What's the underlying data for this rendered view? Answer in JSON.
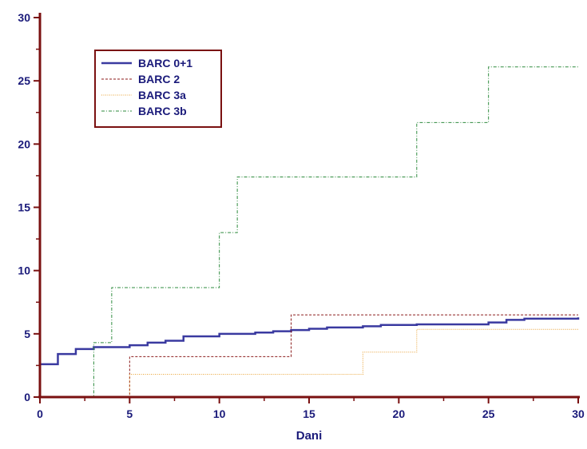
{
  "chart_data": {
    "type": "line",
    "step": true,
    "xlabel": "Dani",
    "ylabel": "",
    "xlim": [
      0,
      30
    ],
    "ylim": [
      0,
      30
    ],
    "xticks": [
      0,
      5,
      10,
      15,
      20,
      25,
      30
    ],
    "yticks": [
      0,
      5,
      10,
      15,
      20,
      25,
      30
    ],
    "legend_position": "top-left",
    "axis_color": "#7a1010",
    "tick_label_color": "#1a1a7a",
    "series": [
      {
        "name": "BARC 0+1",
        "color": "#3a3aa0",
        "dash": "solid",
        "points": [
          [
            0,
            0
          ],
          [
            0,
            2.6
          ],
          [
            1,
            3.4
          ],
          [
            2,
            3.8
          ],
          [
            3,
            3.95
          ],
          [
            5,
            4.1
          ],
          [
            6,
            4.3
          ],
          [
            7,
            4.45
          ],
          [
            8,
            4.8
          ],
          [
            10,
            5.0
          ],
          [
            12,
            5.1
          ],
          [
            13,
            5.2
          ],
          [
            14,
            5.3
          ],
          [
            15,
            5.4
          ],
          [
            16,
            5.5
          ],
          [
            18,
            5.6
          ],
          [
            19,
            5.7
          ],
          [
            21,
            5.75
          ],
          [
            25,
            5.9
          ],
          [
            26,
            6.1
          ],
          [
            27,
            6.2
          ],
          [
            30,
            6.3
          ]
        ]
      },
      {
        "name": "BARC 2",
        "color": "#8b1a1a",
        "dash": "dashed",
        "points": [
          [
            0,
            0
          ],
          [
            5,
            3.2
          ],
          [
            14,
            6.5
          ],
          [
            30,
            6.5
          ]
        ]
      },
      {
        "name": "BARC 3a",
        "color": "#e8a030",
        "dash": "dotted",
        "points": [
          [
            0,
            0
          ],
          [
            5,
            1.8
          ],
          [
            18,
            3.55
          ],
          [
            21,
            5.35
          ],
          [
            30,
            5.35
          ]
        ]
      },
      {
        "name": "BARC 3b",
        "color": "#2e8b3e",
        "dash": "dashdot",
        "points": [
          [
            0,
            0
          ],
          [
            3,
            4.3
          ],
          [
            4,
            8.65
          ],
          [
            10,
            13.0
          ],
          [
            11,
            17.4
          ],
          [
            21,
            21.7
          ],
          [
            25,
            26.1
          ],
          [
            30,
            26.1
          ]
        ]
      }
    ]
  }
}
